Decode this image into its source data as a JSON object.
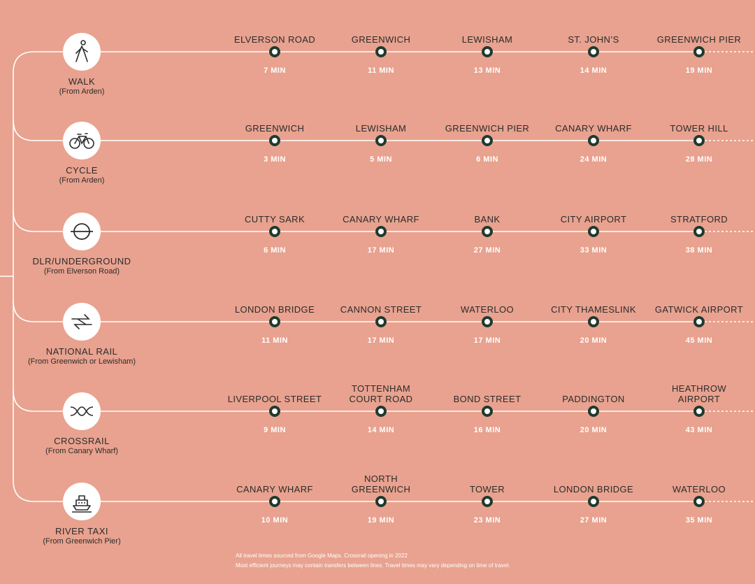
{
  "modes": [
    {
      "name": "WALK",
      "from": "(From Arden)",
      "icon": "walk-icon",
      "stops": [
        {
          "station": [
            "ELVERSON ROAD"
          ],
          "time": "7 MIN"
        },
        {
          "station": [
            "GREENWICH"
          ],
          "time": "11 MIN"
        },
        {
          "station": [
            "LEWISHAM"
          ],
          "time": "13 MIN"
        },
        {
          "station": [
            "ST. JOHN’S"
          ],
          "time": "14 MIN"
        },
        {
          "station": [
            "GREENWICH PIER"
          ],
          "time": "19 MIN"
        }
      ]
    },
    {
      "name": "CYCLE",
      "from": "(From Arden)",
      "icon": "bicycle-icon",
      "stops": [
        {
          "station": [
            "GREENWICH"
          ],
          "time": "3 MIN"
        },
        {
          "station": [
            "LEWISHAM"
          ],
          "time": "5 MIN"
        },
        {
          "station": [
            "GREENWICH PIER"
          ],
          "time": "6 MIN"
        },
        {
          "station": [
            "CANARY WHARF"
          ],
          "time": "24 MIN"
        },
        {
          "station": [
            "TOWER HILL"
          ],
          "time": "28 MIN"
        }
      ]
    },
    {
      "name": "DLR/UNDERGROUND",
      "from": "(From Elverson Road)",
      "icon": "underground-roundel-icon",
      "stops": [
        {
          "station": [
            "CUTTY SARK"
          ],
          "time": "6 MIN"
        },
        {
          "station": [
            "CANARY WHARF"
          ],
          "time": "17 MIN"
        },
        {
          "station": [
            "BANK"
          ],
          "time": "27 MIN"
        },
        {
          "station": [
            "CITY AIRPORT"
          ],
          "time": "33 MIN"
        },
        {
          "station": [
            "STRATFORD"
          ],
          "time": "38 MIN"
        }
      ]
    },
    {
      "name": "NATIONAL RAIL",
      "from": "(From Greenwich or Lewisham)",
      "icon": "national-rail-icon",
      "stops": [
        {
          "station": [
            "LONDON BRIDGE"
          ],
          "time": "11 MIN"
        },
        {
          "station": [
            "CANNON STREET"
          ],
          "time": "17 MIN"
        },
        {
          "station": [
            "WATERLOO"
          ],
          "time": "17 MIN"
        },
        {
          "station": [
            "CITY THAMESLINK"
          ],
          "time": "20 MIN"
        },
        {
          "station": [
            "GATWICK AIRPORT"
          ],
          "time": "45 MIN"
        }
      ]
    },
    {
      "name": "CROSSRAIL",
      "from": "(From Canary Wharf)",
      "icon": "crossrail-icon",
      "stops": [
        {
          "station": [
            "LIVERPOOL STREET"
          ],
          "time": "9 MIN"
        },
        {
          "station": [
            "TOTTENHAM",
            "COURT ROAD"
          ],
          "time": "14 MIN"
        },
        {
          "station": [
            "BOND STREET"
          ],
          "time": "16 MIN"
        },
        {
          "station": [
            "PADDINGTON"
          ],
          "time": "20 MIN"
        },
        {
          "station": [
            "HEATHROW",
            "AIRPORT"
          ],
          "time": "43 MIN"
        }
      ]
    },
    {
      "name": "RIVER TAXI",
      "from": "(From Greenwich Pier)",
      "icon": "boat-icon",
      "stops": [
        {
          "station": [
            "CANARY WHARF"
          ],
          "time": "10 MIN"
        },
        {
          "station": [
            "NORTH",
            "GREENWICH"
          ],
          "time": "19 MIN"
        },
        {
          "station": [
            "TOWER"
          ],
          "time": "23 MIN"
        },
        {
          "station": [
            "LONDON BRIDGE"
          ],
          "time": "27 MIN"
        },
        {
          "station": [
            "WATERLOO"
          ],
          "time": "35 MIN"
        }
      ]
    }
  ],
  "footnote": [
    "All travel times sourced from Google Maps. Crossrail opening in 2022",
    "Most efficient journeys may contain transfers between lines. Travel times may vary depending on time of travel."
  ],
  "colors": {
    "background": "#e8a28f",
    "line": "#ffffff",
    "stop": "#1f3a2f",
    "text": "#2b2b2b"
  }
}
